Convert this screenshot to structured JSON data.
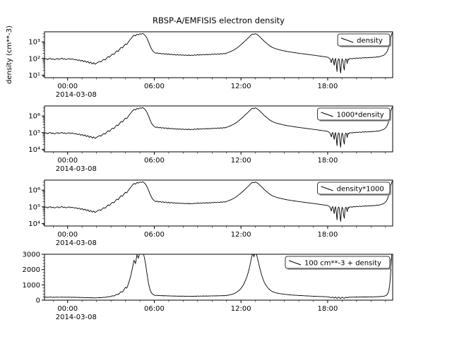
{
  "chart_data": {
    "type": "line",
    "title": "RBSP-A/EMFISIS  electron density",
    "colors": {
      "background": "#ffffff",
      "foreground": "#000000"
    },
    "x_unit": "hours since 2014-03-08 00:00",
    "x_range": [
      -1.6,
      22.5
    ],
    "x_ticks": {
      "major_positions": [
        0,
        6,
        12,
        18
      ],
      "labels": [
        "00:00",
        "06:00",
        "12:00",
        "18:00"
      ],
      "minor_interval_hours": 1,
      "offset_label": "2014-03-08"
    },
    "x_segments": [
      {
        "start": -1.6,
        "step": 0.1,
        "count": 197
      },
      {
        "start": 18.05,
        "step": 0.05,
        "count": 30
      },
      {
        "start": 19.6,
        "step": 0.1,
        "count": 24
      },
      {
        "start": 21.95,
        "step": 0.05,
        "count": 12
      }
    ],
    "density": [
      92,
      98,
      86,
      95,
      102,
      88,
      96,
      84,
      93,
      100,
      87,
      94,
      105,
      90,
      97,
      85,
      93,
      99,
      88,
      95,
      90,
      83,
      88,
      76,
      84,
      70,
      78,
      64,
      72,
      58,
      66,
      52,
      60,
      47,
      55,
      45,
      52,
      58,
      66,
      62,
      75,
      88,
      82,
      105,
      128,
      118,
      150,
      185,
      172,
      225,
      285,
      265,
      360,
      460,
      430,
      580,
      740,
      690,
      950,
      1250,
      1600,
      2050,
      2500,
      2300,
      2850,
      2650,
      3050,
      2900,
      3150,
      2750,
      2250,
      1600,
      1000,
      600,
      380,
      280,
      230,
      205,
      218,
      192,
      210,
      186,
      202,
      178,
      195,
      172,
      188,
      168,
      182,
      162,
      176,
      158,
      172,
      156,
      168,
      154,
      166,
      152,
      164,
      150,
      162,
      148,
      160,
      152,
      165,
      155,
      170,
      158,
      172,
      160,
      175,
      162,
      178,
      165,
      180,
      168,
      184,
      172,
      188,
      175,
      192,
      180,
      196,
      185,
      202,
      192,
      210,
      225,
      242,
      262,
      288,
      320,
      362,
      415,
      480,
      565,
      670,
      800,
      960,
      1160,
      1400,
      1700,
      2080,
      2550,
      2950,
      2750,
      3100,
      2800,
      2400,
      2000,
      1650,
      1350,
      1100,
      920,
      780,
      660,
      570,
      500,
      450,
      415,
      385,
      362,
      342,
      325,
      310,
      296,
      284,
      273,
      263,
      254,
      246,
      238,
      231,
      224,
      218,
      212,
      206,
      200,
      195,
      190,
      185,
      180,
      175,
      170,
      166,
      162,
      158,
      154,
      150,
      146,
      142,
      138,
      134,
      130,
      126,
      122,
      118,
      112,
      105,
      96,
      80,
      55,
      90,
      102,
      70,
      38,
      85,
      98,
      45,
      16,
      70,
      95,
      88,
      30,
      13,
      60,
      92,
      78,
      35,
      20,
      68,
      94,
      86,
      50,
      90,
      82,
      96,
      100,
      94,
      104,
      98,
      108,
      100,
      110,
      103,
      112,
      106,
      114,
      108,
      116,
      110,
      118,
      112,
      122,
      116,
      126,
      120,
      130,
      138,
      148,
      160,
      172,
      190,
      215,
      250,
      310,
      420,
      620,
      950,
      1500,
      2300,
      3100,
      3600
    ],
    "panels": [
      {
        "legend": "density",
        "scale": "log",
        "multiply": 1,
        "add": 0,
        "y_range": [
          7,
          4000
        ],
        "y_ticks": [
          10,
          100,
          1000
        ],
        "y_tick_labels": [
          "10¹",
          "10²",
          "10³"
        ],
        "ylabel": "density (cm**-3)"
      },
      {
        "legend": "1000*density",
        "scale": "log",
        "multiply": 1000,
        "add": 0,
        "y_range": [
          7000,
          4000000
        ],
        "y_ticks": [
          10000,
          100000,
          1000000
        ],
        "y_tick_labels": [
          "10⁴",
          "10⁵",
          "10⁶"
        ],
        "ylabel": ""
      },
      {
        "legend": "density*1000",
        "scale": "log",
        "multiply": 1000,
        "add": 0,
        "y_range": [
          7000,
          4000000
        ],
        "y_ticks": [
          10000,
          100000,
          1000000
        ],
        "y_tick_labels": [
          "10⁴",
          "10⁵",
          "10⁶"
        ],
        "ylabel": ""
      },
      {
        "legend": "100 cm**-3 + density",
        "scale": "linear",
        "multiply": 1,
        "add": 100,
        "y_range": [
          0,
          3000
        ],
        "y_minor": 200,
        "y_ticks": [
          0,
          1000,
          2000,
          3000
        ],
        "y_tick_labels": [
          "0",
          "1000",
          "2000",
          "3000"
        ],
        "ylabel": ""
      }
    ]
  }
}
